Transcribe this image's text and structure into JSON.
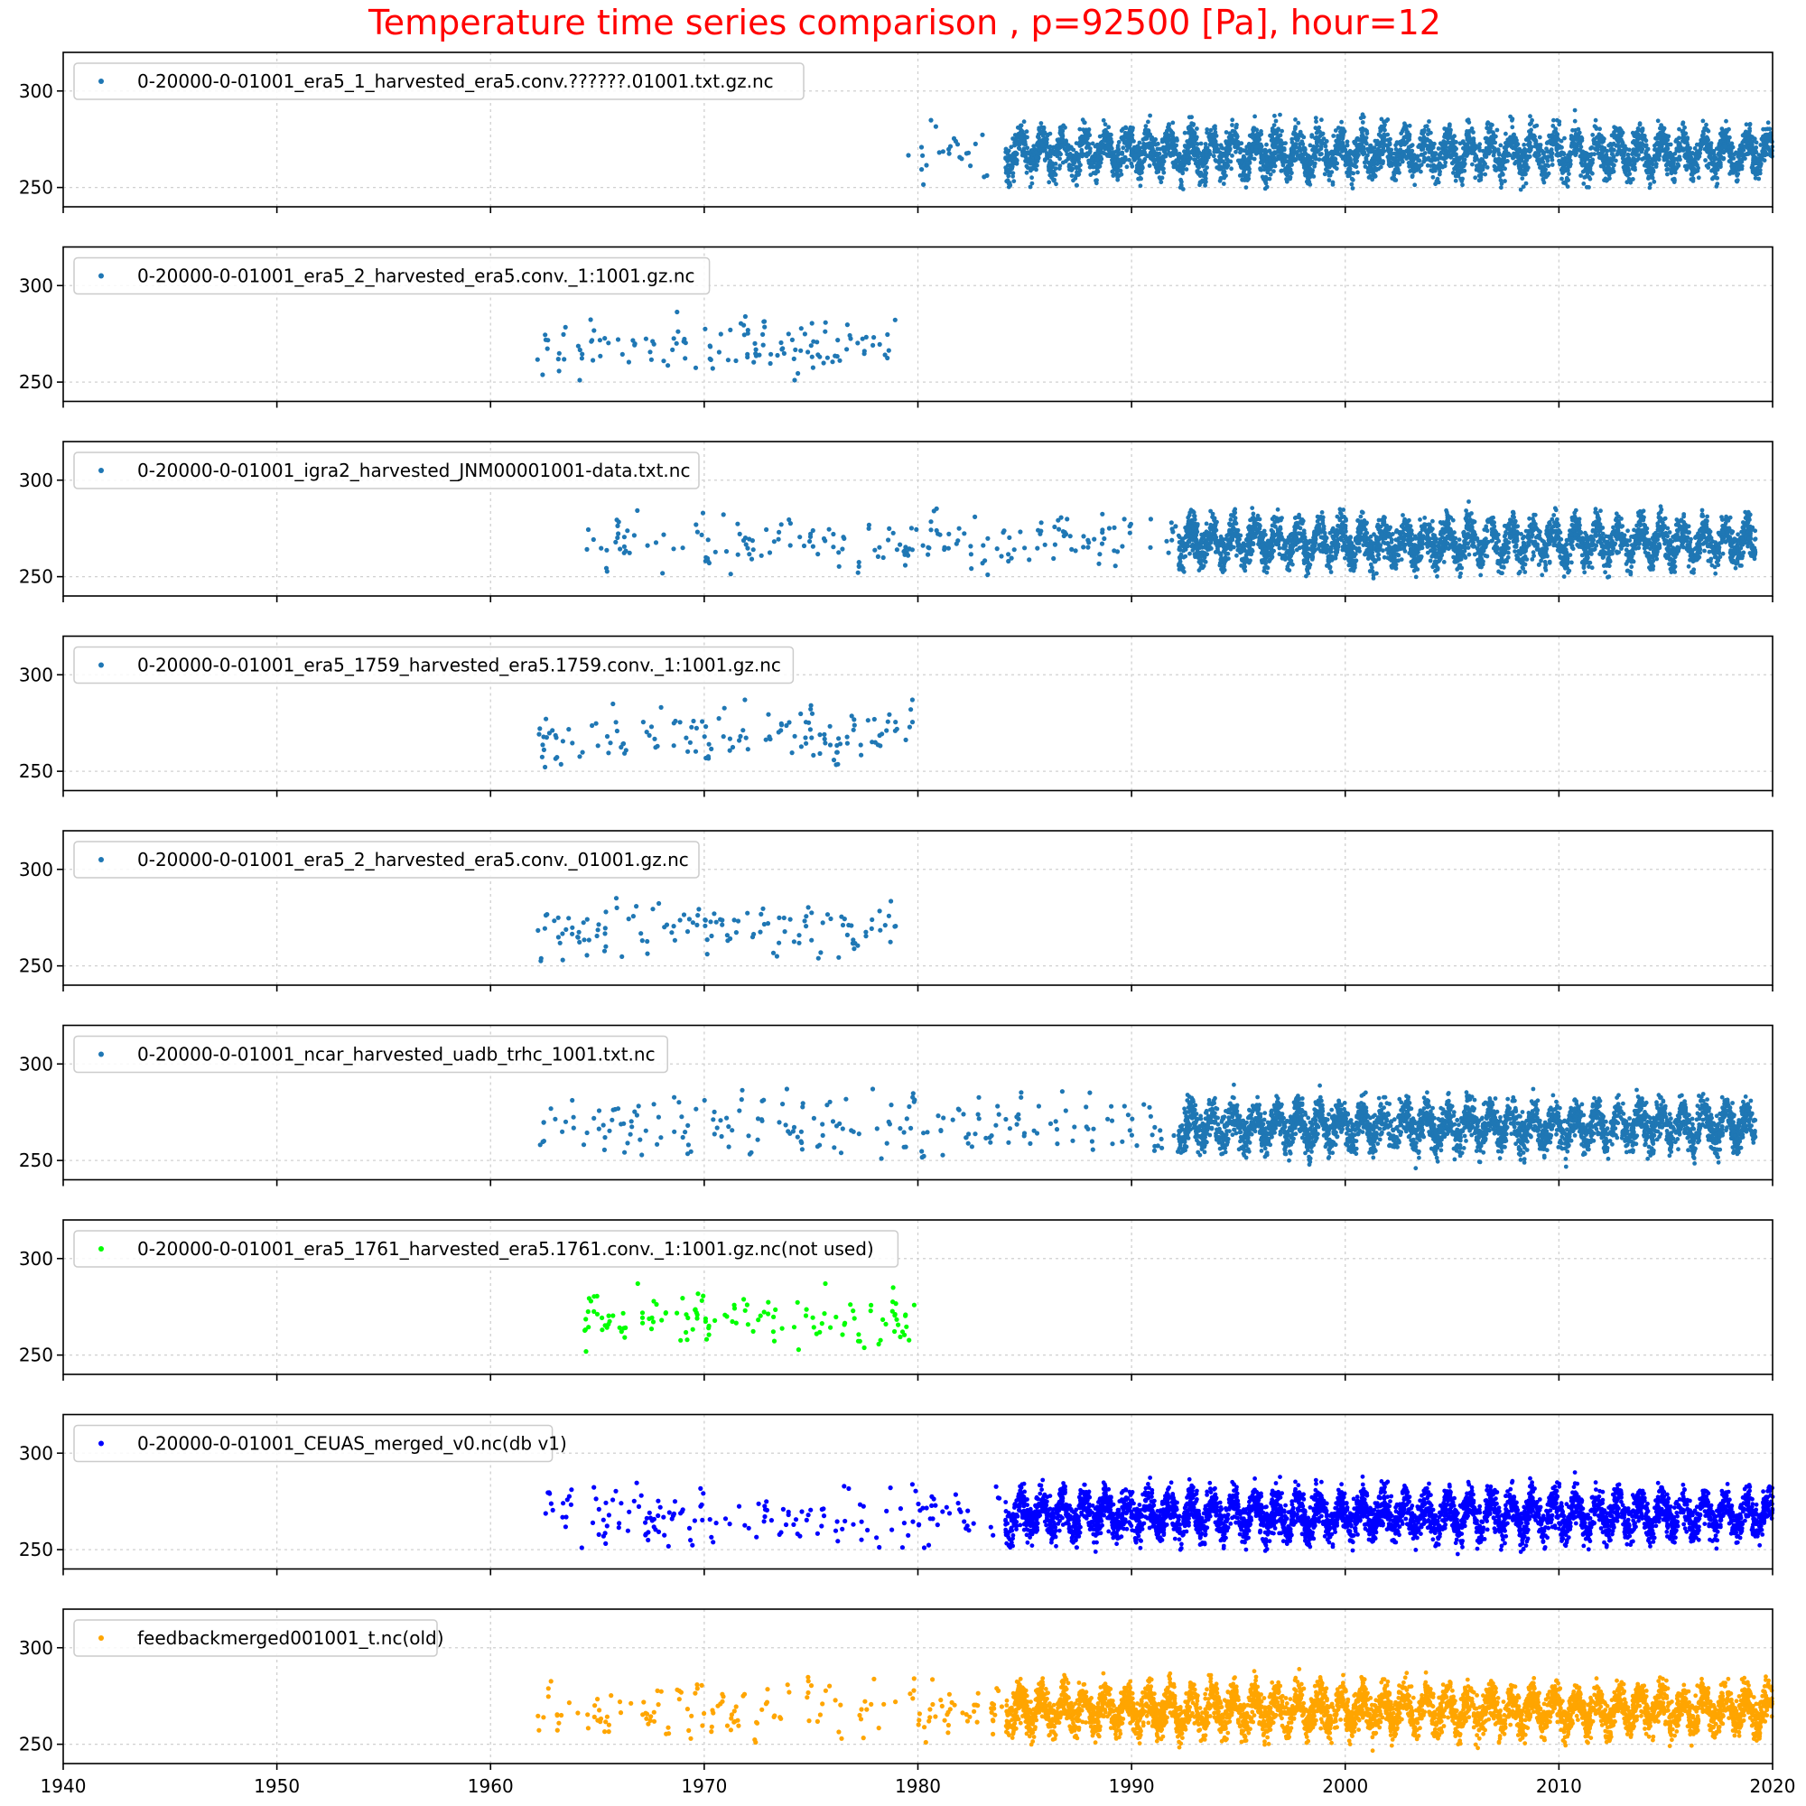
{
  "chart_data": {
    "type": "scatter",
    "title": "Temperature time series comparison , p=92500 [Pa], hour=12",
    "xlabel": "",
    "ylabel": "",
    "xlim": [
      1940,
      2020
    ],
    "x_ticks": [
      "1940",
      "1950",
      "1960",
      "1970",
      "1980",
      "1990",
      "2000",
      "2010",
      "2020"
    ],
    "ylim": [
      240,
      320
    ],
    "y_ticks": [
      "250",
      "300"
    ],
    "grid": true,
    "legend_placement": "upper-left",
    "shared_x": true,
    "panels": [
      {
        "name": "0-20000-0-01001_era5_1_harvested_era5.conv.??????.01001.txt.gz.nc",
        "color": "#1f77b4",
        "sparse": {
          "start": 1979.0,
          "end": 1984.0,
          "n": 25
        },
        "dense": {
          "start": 1984.1,
          "end": 2020.0
        },
        "mean_k": 268,
        "amp_k": 7,
        "spread_k": 7
      },
      {
        "name": "0-20000-0-01001_era5_2_harvested_era5.conv._1:1001.gz.nc",
        "color": "#1f77b4",
        "sparse": {
          "start": 1962.2,
          "end": 1979.0,
          "n": 130
        },
        "dense": null,
        "mean_k": 269,
        "amp_k": 5,
        "spread_k": 7
      },
      {
        "name": "0-20000-0-01001_igra2_harvested_JNM00001001-data.txt.nc",
        "color": "#1f77b4",
        "sparse": {
          "start": 1964.3,
          "end": 1992.2,
          "n": 200
        },
        "dense": {
          "start": 1992.2,
          "end": 2019.2
        },
        "mean_k": 268,
        "amp_k": 7,
        "spread_k": 7
      },
      {
        "name": "0-20000-0-01001_era5_1759_harvested_era5.1759.conv._1:1001.gz.nc",
        "color": "#1f77b4",
        "sparse": {
          "start": 1962.2,
          "end": 1979.9,
          "n": 140
        },
        "dense": null,
        "mean_k": 269,
        "amp_k": 5,
        "spread_k": 7
      },
      {
        "name": "0-20000-0-01001_era5_2_harvested_era5.conv._01001.gz.nc",
        "color": "#1f77b4",
        "sparse": {
          "start": 1962.2,
          "end": 1979.0,
          "n": 130
        },
        "dense": null,
        "mean_k": 269,
        "amp_k": 5,
        "spread_k": 7
      },
      {
        "name": "0-20000-0-01001_ncar_harvested_uadb_trhc_1001.txt.nc",
        "color": "#1f77b4",
        "sparse": {
          "start": 1962.2,
          "end": 1992.2,
          "n": 210
        },
        "dense": {
          "start": 1992.2,
          "end": 2019.2
        },
        "mean_k": 268,
        "amp_k": 7,
        "spread_k": 7
      },
      {
        "name": "0-20000-0-01001_era5_1761_harvested_era5.1761.conv._1:1001.gz.nc(not used)",
        "color": "#00ff00",
        "sparse": {
          "start": 1964.3,
          "end": 1979.9,
          "n": 130
        },
        "dense": null,
        "mean_k": 269,
        "amp_k": 5,
        "spread_k": 7
      },
      {
        "name": "0-20000-0-01001_CEUAS_merged_v0.nc(db v1)",
        "color": "#0000ff",
        "sparse": {
          "start": 1962.2,
          "end": 1984.0,
          "n": 170
        },
        "dense": {
          "start": 1984.1,
          "end": 2020.0
        },
        "mean_k": 268,
        "amp_k": 7,
        "spread_k": 7
      },
      {
        "name": "feedbackmerged001001_t.nc(old)",
        "color": "#ffa500",
        "sparse": {
          "start": 1962.2,
          "end": 1984.0,
          "n": 170
        },
        "dense": {
          "start": 1984.1,
          "end": 2020.0
        },
        "mean_k": 268,
        "amp_k": 7,
        "spread_k": 7
      }
    ]
  }
}
